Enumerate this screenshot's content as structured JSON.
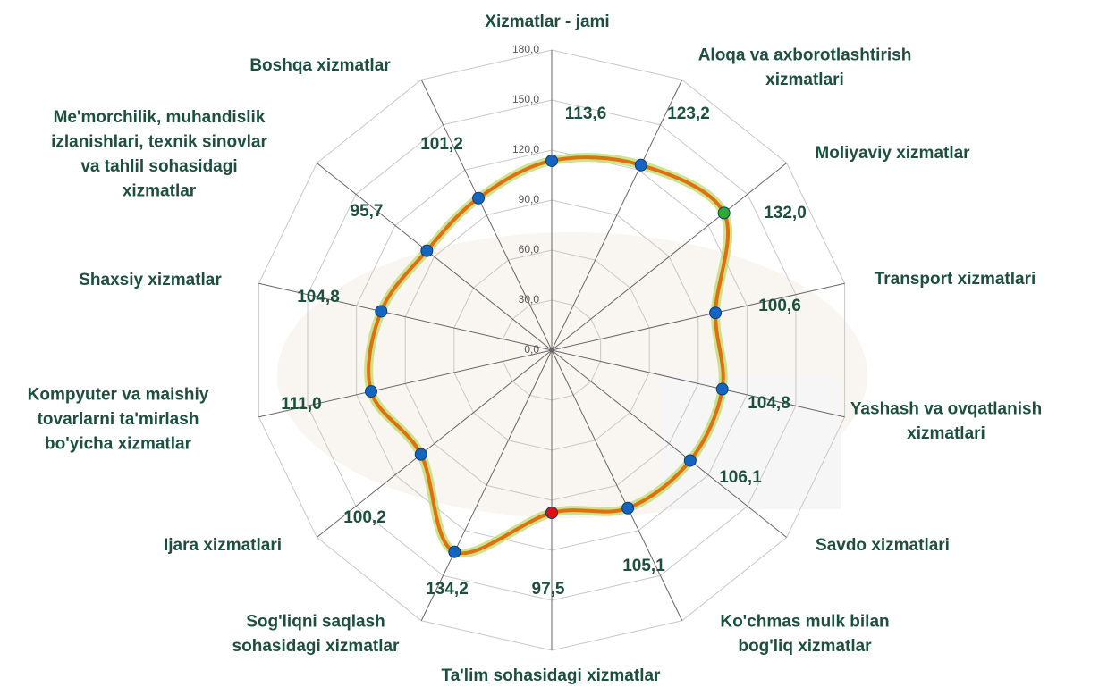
{
  "chart_data": {
    "type": "radar",
    "categories": [
      "Xizmatlar - jami",
      "Aloqa va axborotlashtirish\nxizmatlari",
      "Moliyaviy xizmatlar",
      "Transport xizmatlari",
      "Yashash va ovqatlanish\nxizmatlari",
      "Savdo xizmatlari",
      "Ko'chmas mulk bilan\nbog'liq xizmatlar",
      "Ta'lim sohasidagi xizmatlar",
      "Sog'liqni saqlash\nsohasidagi xizmatlar",
      "Ijara xizmatlari",
      "Kompyuter va maishiy\ntovarlarni ta'mirlash\nbo'yicha xizmatlar",
      "Shaxsiy xizmatlar",
      "Me'morchilik, muhandislik\nizlanishlari, texnik  sinovlar\nva tahlil sohasidagi\nxizmatlar",
      "Boshqa xizmatlar"
    ],
    "values": [
      113.6,
      123.2,
      132.0,
      100.6,
      104.8,
      106.1,
      105.1,
      97.5,
      134.2,
      100.2,
      111.0,
      104.8,
      95.7,
      101.2
    ],
    "value_labels": [
      "113,6",
      "123,2",
      "132,0",
      "100,6",
      "104,8",
      "106,1",
      "105,1",
      "97,5",
      "134,2",
      "100,2",
      "111,0",
      "104,8",
      "95,7",
      "101,2"
    ],
    "color": "#e0700f",
    "marker_colors": [
      "#1565c0",
      "#1565c0",
      "#2eaa2e",
      "#1565c0",
      "#1565c0",
      "#1565c0",
      "#1565c0",
      "#e01010",
      "#1565c0",
      "#1565c0",
      "#1565c0",
      "#1565c0",
      "#1565c0",
      "#1565c0"
    ],
    "ylim": [
      0,
      180
    ],
    "yticks": [
      {
        "value": 0,
        "label": "0,0"
      },
      {
        "value": 30,
        "label": "30,0"
      },
      {
        "value": 60,
        "label": "60,0"
      },
      {
        "value": 90,
        "label": "90,0"
      },
      {
        "value": 120,
        "label": "120,0"
      },
      {
        "value": 150,
        "label": "150,0"
      },
      {
        "value": 180,
        "label": "180,0"
      }
    ],
    "grid": true
  }
}
